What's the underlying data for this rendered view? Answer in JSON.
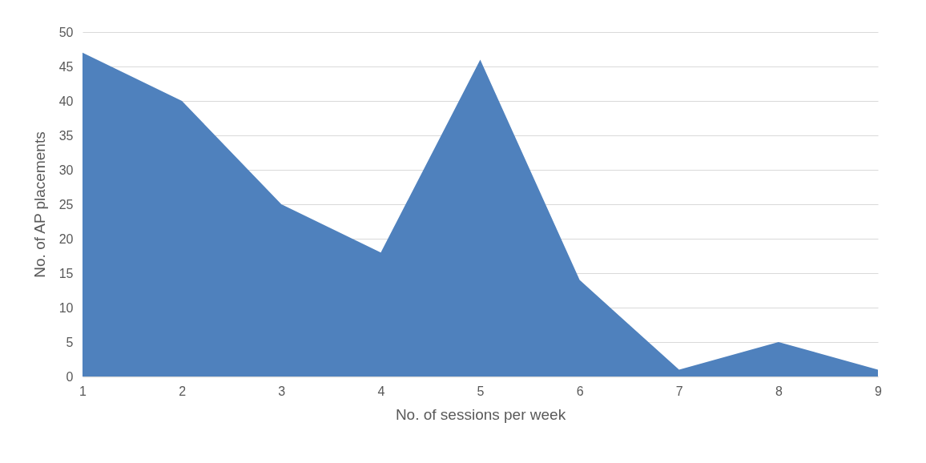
{
  "chart_data": {
    "type": "area",
    "xlabel": "No. of sessions per week",
    "ylabel": "No. of AP placements",
    "categories": [
      "1",
      "2",
      "3",
      "4",
      "5",
      "6",
      "7",
      "8",
      "9"
    ],
    "values": [
      47,
      40,
      25,
      18,
      46,
      14,
      1,
      5,
      1
    ],
    "color": "#4f81bd",
    "ylim": [
      0,
      50
    ],
    "yticks": [
      0,
      5,
      10,
      15,
      20,
      25,
      30,
      35,
      40,
      45,
      50
    ],
    "grid": "y"
  }
}
